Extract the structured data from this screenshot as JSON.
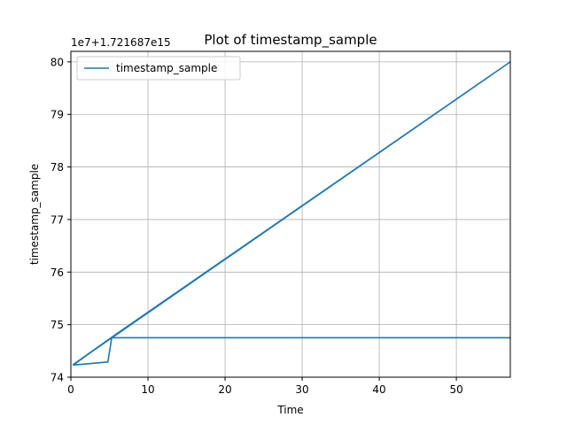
{
  "chart_data": {
    "type": "line",
    "title": "Plot of timestamp_sample",
    "xlabel": "Time",
    "ylabel": "timestamp_sample",
    "y_offset_label": "1e7+1.721687e15",
    "xlim": [
      0,
      57
    ],
    "ylim": [
      74.0,
      80.2
    ],
    "x_ticks": [
      0,
      10,
      20,
      30,
      40,
      50
    ],
    "y_ticks": [
      74,
      75,
      76,
      77,
      78,
      79,
      80
    ],
    "grid": true,
    "legend_position": "top-left",
    "series": [
      {
        "name": "timestamp_sample",
        "color": "#1f77b4",
        "x": [
          0.3,
          5.2,
          57.0,
          57.0,
          0.3,
          5.3,
          5.3,
          57.0,
          57.0,
          5.3,
          4.8,
          0.3
        ],
        "y": [
          74.23,
          74.75,
          80.0,
          80.0,
          74.24,
          74.76,
          74.75,
          74.75,
          74.75,
          74.75,
          74.29,
          74.23
        ]
      }
    ]
  }
}
